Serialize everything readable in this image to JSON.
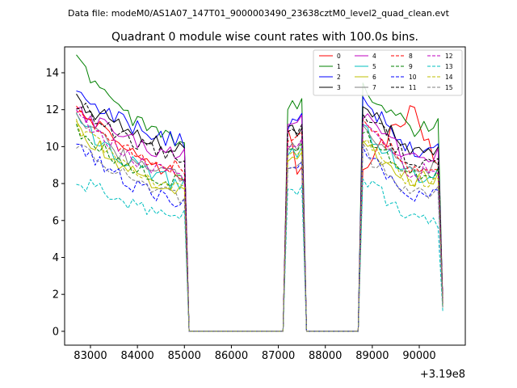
{
  "chart_data": {
    "type": "line",
    "suptitle": "Data file: modeM0/AS1A07_147T01_9000003490_23638cztM0_level2_quad_clean.evt",
    "title": "Quadrant 0 module wise count rates with 100.0s bins.",
    "xlabel": "",
    "ylabel": "",
    "x_offset_label": "+3.19e8",
    "xlim": [
      82450,
      90980
    ],
    "ylim": [
      -0.75,
      15.4
    ],
    "x_ticks": [
      83000,
      84000,
      85000,
      86000,
      87000,
      88000,
      89000,
      90000
    ],
    "x_tick_labels": [
      "83000",
      "84000",
      "85000",
      "86000",
      "87000",
      "88000",
      "89000",
      "90000"
    ],
    "y_ticks": [
      0,
      2,
      4,
      6,
      8,
      10,
      12,
      14
    ],
    "y_tick_labels": [
      "0",
      "2",
      "4",
      "6",
      "8",
      "10",
      "12",
      "14"
    ],
    "legend_position": "upper right",
    "segments": [
      {
        "start": 82700,
        "end": 85000
      },
      {
        "start": 87200,
        "end": 87500
      },
      {
        "start": 88800,
        "end": 90400
      }
    ],
    "gap_points": [
      85100,
      87100,
      87600,
      88700
    ],
    "end_points": [
      90500
    ],
    "series": [
      {
        "name": "0",
        "color": "#ff0000",
        "dashed": false,
        "values": [
          12.2,
          8.6,
          11.0,
          8.9,
          9.0,
          12.0,
          9.2,
          1.8
        ]
      },
      {
        "name": "1",
        "color": "#008000",
        "dashed": false,
        "values": [
          14.7,
          10.2,
          12.0,
          12.6,
          13.1,
          10.9,
          11.1,
          1.5
        ]
      },
      {
        "name": "2",
        "color": "#0000ff",
        "dashed": false,
        "values": [
          12.9,
          10.3,
          10.9,
          11.8,
          12.5,
          9.8,
          10.0,
          1.7
        ]
      },
      {
        "name": "3",
        "color": "#000000",
        "dashed": false,
        "values": [
          12.6,
          9.9,
          11.1,
          11.0,
          12.2,
          9.7,
          9.6,
          1.6
        ]
      },
      {
        "name": "4",
        "color": "#bf00bf",
        "dashed": false,
        "values": [
          12.0,
          9.5,
          11.2,
          11.7,
          11.8,
          9.3,
          9.6,
          1.6
        ]
      },
      {
        "name": "5",
        "color": "#00bfbf",
        "dashed": false,
        "values": [
          11.4,
          8.0,
          9.5,
          10.0,
          11.0,
          8.4,
          8.6,
          1.4
        ]
      },
      {
        "name": "6",
        "color": "#bfbf00",
        "dashed": false,
        "values": [
          11.0,
          7.6,
          9.2,
          9.7,
          10.2,
          8.2,
          8.4,
          1.3
        ]
      },
      {
        "name": "7",
        "color": "#808080",
        "dashed": false,
        "values": [
          11.5,
          8.3,
          9.8,
          10.4,
          11.3,
          8.6,
          8.8,
          1.5
        ]
      },
      {
        "name": "8",
        "color": "#ff0000",
        "dashed": true,
        "values": [
          11.8,
          8.8,
          10.3,
          10.8,
          11.5,
          8.9,
          9.1,
          1.6
        ]
      },
      {
        "name": "9",
        "color": "#008000",
        "dashed": true,
        "values": [
          11.0,
          8.0,
          9.8,
          10.2,
          10.8,
          8.4,
          8.6,
          1.5
        ]
      },
      {
        "name": "10",
        "color": "#0000ff",
        "dashed": true,
        "values": [
          10.0,
          7.1,
          8.8,
          9.2,
          9.6,
          7.4,
          7.6,
          1.3
        ]
      },
      {
        "name": "11",
        "color": "#000000",
        "dashed": true,
        "values": [
          12.3,
          9.4,
          10.8,
          11.2,
          12.0,
          9.1,
          9.2,
          1.6
        ]
      },
      {
        "name": "12",
        "color": "#bf00bf",
        "dashed": true,
        "values": [
          11.6,
          8.5,
          10.0,
          10.4,
          11.1,
          8.5,
          8.8,
          1.5
        ]
      },
      {
        "name": "13",
        "color": "#00bfbf",
        "dashed": true,
        "values": [
          8.3,
          6.2,
          7.7,
          7.9,
          8.3,
          5.9,
          6.0,
          1.1
        ]
      },
      {
        "name": "14",
        "color": "#bfbf00",
        "dashed": true,
        "values": [
          11.2,
          7.8,
          9.5,
          9.9,
          10.4,
          8.1,
          8.3,
          1.4
        ]
      },
      {
        "name": "15",
        "color": "#808080",
        "dashed": true,
        "values": [
          10.2,
          7.3,
          8.8,
          9.2,
          9.8,
          7.3,
          7.5,
          1.3
        ]
      }
    ]
  }
}
